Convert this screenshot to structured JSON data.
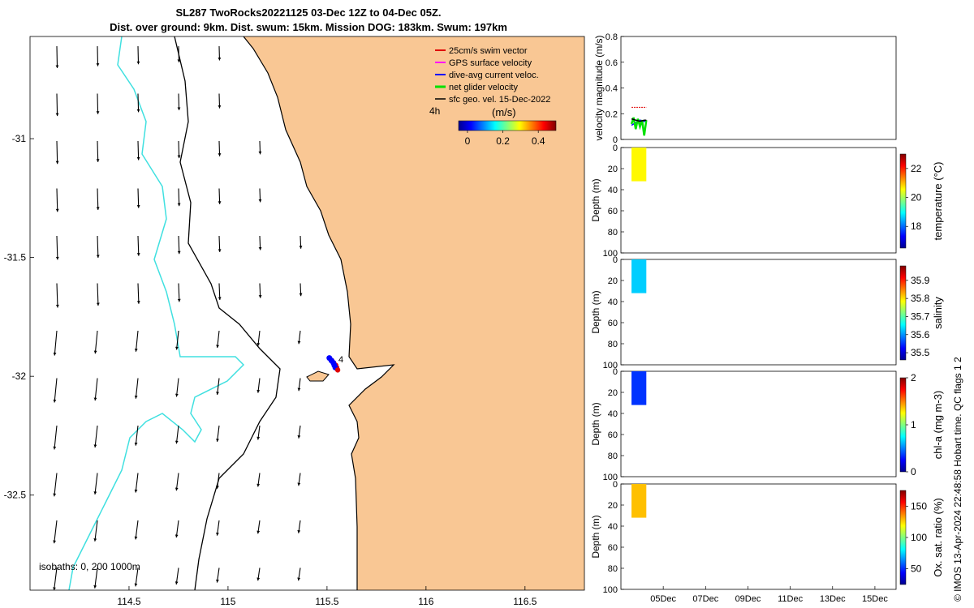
{
  "title": {
    "line1": "SL287 TwoRocks20221125 03-Dec 12Z to 04-Dec 05Z.",
    "line2": "Dist. over ground: 9km. Dist. swum: 15km. Mission DOG: 183km. Swum: 197km"
  },
  "colors": {
    "land": "#f9c794",
    "water": "#ffffff",
    "isobath_shallow": "#40e0e0",
    "isobath_deep": "#000000",
    "swim_vector": "#e00000",
    "gps_velocity": "#ff00ff",
    "dive_avg_current": "#0000ff",
    "net_glider_velocity": "#00e000",
    "sfc_geo_vel": "#000000"
  },
  "chart_data": [
    {
      "type": "scatter",
      "panel": "map",
      "x_ticks": [
        "114.5",
        "115",
        "115.5",
        "116",
        "116.5"
      ],
      "x_tick_values": [
        114.5,
        115,
        115.5,
        116,
        116.5
      ],
      "y_ticks": [
        "-31",
        "-31.5",
        "-32",
        "-32.5"
      ],
      "y_tick_values": [
        -31,
        -31.5,
        -32,
        -32.5
      ],
      "xlim": [
        114.0,
        116.8
      ],
      "ylim": [
        -32.9,
        -30.57
      ],
      "legend": [
        {
          "label": "25cm/s swim vector",
          "color": "#e00000"
        },
        {
          "label": "GPS surface velocity",
          "color": "#ff00ff"
        },
        {
          "label": "dive-avg current veloc.",
          "color": "#0000ff"
        },
        {
          "label": "net glider velocity",
          "color": "#00e000"
        },
        {
          "label": "sfc geo. vel. 15-Dec-2022",
          "color": "#000000"
        }
      ],
      "legend_position": "top-right",
      "time_label": "4h",
      "point_label": "4",
      "colorbar": {
        "label": "(m/s)",
        "ticks": [
          "0",
          "0.2",
          "0.4"
        ],
        "range": [
          -0.05,
          0.5
        ]
      },
      "isobaths_label": "isobaths: 0,  200  1000m",
      "track": [
        {
          "lon": 115.52,
          "lat": -31.93,
          "speed": 0.15
        },
        {
          "lon": 115.53,
          "lat": -31.94,
          "speed": 0.16
        },
        {
          "lon": 115.54,
          "lat": -31.95,
          "speed": 0.14
        },
        {
          "lon": 115.545,
          "lat": -31.96,
          "speed": 0.17
        },
        {
          "lon": 115.55,
          "lat": -31.97,
          "speed": 0.15
        }
      ]
    },
    {
      "type": "line",
      "panel": "velocity",
      "ylabel": "velocity magnitude (m/s)",
      "y_ticks": [
        "0",
        "0.2",
        "0.4",
        "0.6",
        "0.8"
      ],
      "ylim": [
        0,
        0.8
      ],
      "xlim": [
        3.0,
        16.0
      ],
      "series": [
        {
          "color": "#e00000",
          "x": [
            3.5,
            3.6,
            3.7,
            3.8,
            3.9,
            4.0,
            4.1,
            4.2
          ],
          "y": [
            0.25,
            0.25,
            0.25,
            0.25,
            0.25,
            0.25,
            0.25,
            0.25
          ]
        },
        {
          "color": "#0000ff",
          "x": [
            3.5,
            3.7,
            3.9,
            4.1,
            4.2
          ],
          "y": [
            0.11,
            0.13,
            0.15,
            0.14,
            0.15
          ]
        },
        {
          "color": "#00e000",
          "x": [
            3.5,
            3.6,
            3.7,
            3.8,
            3.9,
            4.0,
            4.1,
            4.2
          ],
          "y": [
            0.12,
            0.17,
            0.08,
            0.16,
            0.1,
            0.15,
            0.03,
            0.15
          ]
        },
        {
          "color": "#000000",
          "x": [
            3.5,
            3.7,
            3.9,
            4.1,
            4.2
          ],
          "y": [
            0.16,
            0.15,
            0.14,
            0.15,
            0.15
          ]
        }
      ]
    },
    {
      "type": "heatmap",
      "panel": "temperature",
      "ylabel": "Depth (m)",
      "clabel": "temperature (°C)",
      "y_ticks": [
        "0",
        "20",
        "40",
        "60",
        "80",
        "100"
      ],
      "c_ticks": [
        "18",
        "20",
        "22"
      ],
      "c_tick_values": [
        18,
        20,
        22
      ],
      "crange": [
        16.5,
        23
      ],
      "value": 20.6,
      "x_range": [
        3.5,
        4.2
      ],
      "depth_range": [
        0,
        32
      ]
    },
    {
      "type": "heatmap",
      "panel": "salinity",
      "ylabel": "Depth (m)",
      "clabel": "salinity",
      "y_ticks": [
        "0",
        "20",
        "40",
        "60",
        "80",
        "100"
      ],
      "c_ticks": [
        "35.5",
        "35.6",
        "35.7",
        "35.8",
        "35.9"
      ],
      "c_tick_values": [
        35.5,
        35.6,
        35.7,
        35.8,
        35.9
      ],
      "crange": [
        35.46,
        35.98
      ],
      "value": 35.63,
      "x_range": [
        3.5,
        4.2
      ],
      "depth_range": [
        0,
        32
      ]
    },
    {
      "type": "heatmap",
      "panel": "chl-a",
      "ylabel": "Depth (m)",
      "clabel": "chl-a (mg m-3)",
      "y_ticks": [
        "0",
        "20",
        "40",
        "60",
        "80",
        "100"
      ],
      "c_ticks": [
        "0",
        "1",
        "2"
      ],
      "c_tick_values": [
        0,
        1,
        2
      ],
      "crange": [
        0,
        2
      ],
      "value": 0.35,
      "x_range": [
        3.5,
        4.2
      ],
      "depth_range": [
        0,
        32
      ]
    },
    {
      "type": "heatmap",
      "panel": "oxygen",
      "ylabel": "Depth (m)",
      "clabel": "Ox. sat. ratio (%)",
      "y_ticks": [
        "0",
        "20",
        "40",
        "60",
        "80",
        "100"
      ],
      "c_ticks": [
        "50",
        "100",
        "150"
      ],
      "c_tick_values": [
        50,
        100,
        150
      ],
      "crange": [
        25,
        175
      ],
      "value": 128,
      "x_range": [
        3.5,
        4.2
      ],
      "depth_range": [
        0,
        32
      ]
    }
  ],
  "time_axis": {
    "ticks": [
      "05Dec",
      "07Dec",
      "09Dec",
      "11Dec",
      "13Dec",
      "15Dec"
    ],
    "tick_values": [
      5,
      7,
      9,
      11,
      13,
      15
    ]
  },
  "footer": "© IMOS 13-Apr-2024 22:48:58 Hobart time. QC flags 1  2"
}
